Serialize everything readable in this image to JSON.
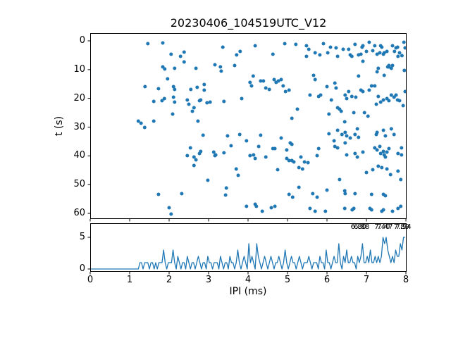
{
  "title": "20230406_104519UTC_V12",
  "colors": {
    "series": "#1f77b4",
    "axis": "#000000",
    "background": "#ffffff"
  },
  "chart_data": [
    {
      "type": "scatter",
      "ylabel": "t (s)",
      "xlim": [
        0,
        8
      ],
      "ylim": [
        0,
        62
      ],
      "y_inverted": true,
      "y_ticks": [
        0,
        10,
        20,
        30,
        40,
        50,
        60
      ],
      "grid": false,
      "marker_color": "#1f77b4",
      "points": [
        [
          1.46,
          0.98
        ],
        [
          1.84,
          0.73
        ],
        [
          2.05,
          4.65
        ],
        [
          2.29,
          5.39
        ],
        [
          2.38,
          3.92
        ],
        [
          3.36,
          2.2
        ],
        [
          3.71,
          4.9
        ],
        [
          3.8,
          3.67
        ],
        [
          1.84,
          9.06
        ],
        [
          1.89,
          9.8
        ],
        [
          2.14,
          9.55
        ],
        [
          2.38,
          7.35
        ],
        [
          2.68,
          9.55
        ],
        [
          3.16,
          8.33
        ],
        [
          3.3,
          9.06
        ],
        [
          3.32,
          10.53
        ],
        [
          3.66,
          8.57
        ],
        [
          1.96,
          13.22
        ],
        [
          1.39,
          15.92
        ],
        [
          1.73,
          16.65
        ],
        [
          2.11,
          15.92
        ],
        [
          2.14,
          16.9
        ],
        [
          2.55,
          16.9
        ],
        [
          2.71,
          16.16
        ],
        [
          2.89,
          15.18
        ],
        [
          2.89,
          17.14
        ],
        [
          1.61,
          21.06
        ],
        [
          1.82,
          20.82
        ],
        [
          1.88,
          20.08
        ],
        [
          2.11,
          19.59
        ],
        [
          2.14,
          21.31
        ],
        [
          2.46,
          20.57
        ],
        [
          2.5,
          22.04
        ],
        [
          2.63,
          23.27
        ],
        [
          2.77,
          20.82
        ],
        [
          2.8,
          20.57
        ],
        [
          2.96,
          21.55
        ],
        [
          3.04,
          21.31
        ],
        [
          3.39,
          21.06
        ],
        [
          3.84,
          20.08
        ],
        [
          2.09,
          25.47
        ],
        [
          2.59,
          24.49
        ],
        [
          1.22,
          27.92
        ],
        [
          1.29,
          28.65
        ],
        [
          1.61,
          27.92
        ],
        [
          2.73,
          27.92
        ],
        [
          4.18,
          1.71
        ],
        [
          4.63,
          4.65
        ],
        [
          4.93,
          0.98
        ],
        [
          5.21,
          1.22
        ],
        [
          5.48,
          1.71
        ],
        [
          5.54,
          2.94
        ],
        [
          5.48,
          5.39
        ],
        [
          5.7,
          4.16
        ],
        [
          5.82,
          4.9
        ],
        [
          5.91,
          0.98
        ],
        [
          6.02,
          4.16
        ],
        [
          6.09,
          2.2
        ],
        [
          6.23,
          2.45
        ],
        [
          6.27,
          5.39
        ],
        [
          6.41,
          2.94
        ],
        [
          6.55,
          2.94
        ],
        [
          6.59,
          4.9
        ],
        [
          6.63,
          5.39
        ],
        [
          6.71,
          1.22
        ],
        [
          6.8,
          4.9
        ],
        [
          6.86,
          4.65
        ],
        [
          6.89,
          2.2
        ],
        [
          6.91,
          1.71
        ],
        [
          6.91,
          7.1
        ],
        [
          7.0,
          3.67
        ],
        [
          7.07,
          0.49
        ],
        [
          7.16,
          3.43
        ],
        [
          7.21,
          1.71
        ],
        [
          7.27,
          4.65
        ],
        [
          7.34,
          4.16
        ],
        [
          7.36,
          1.71
        ],
        [
          7.39,
          2.2
        ],
        [
          7.43,
          4.65
        ],
        [
          7.45,
          4.16
        ],
        [
          7.52,
          3.67
        ],
        [
          7.54,
          9.06
        ],
        [
          7.57,
          8.57
        ],
        [
          7.66,
          1.71
        ],
        [
          7.71,
          3.67
        ],
        [
          7.75,
          2.45
        ],
        [
          7.79,
          2.2
        ],
        [
          7.8,
          5.39
        ],
        [
          7.84,
          4.16
        ],
        [
          7.27,
          10.78
        ],
        [
          7.3,
          9.55
        ],
        [
          7.45,
          12.0
        ],
        [
          7.57,
          9.06
        ],
        [
          7.63,
          9.55
        ],
        [
          7.66,
          8.57
        ],
        [
          4.13,
          12.24
        ],
        [
          4.05,
          14.45
        ],
        [
          4.09,
          15.67
        ],
        [
          4.32,
          13.96
        ],
        [
          4.39,
          13.96
        ],
        [
          4.45,
          16.41
        ],
        [
          4.54,
          16.9
        ],
        [
          4.66,
          13.47
        ],
        [
          4.71,
          14.45
        ],
        [
          4.77,
          13.96
        ],
        [
          4.84,
          13.47
        ],
        [
          4.89,
          15.67
        ],
        [
          4.95,
          17.63
        ],
        [
          5.04,
          17.14
        ],
        [
          5.11,
          26.94
        ],
        [
          5.25,
          23.76
        ],
        [
          5.57,
          18.86
        ],
        [
          5.66,
          12.0
        ],
        [
          5.7,
          13.47
        ],
        [
          5.79,
          19.35
        ],
        [
          5.84,
          18.86
        ],
        [
          6.0,
          15.92
        ],
        [
          6.05,
          25.47
        ],
        [
          6.11,
          20.57
        ],
        [
          6.2,
          14.69
        ],
        [
          6.23,
          16.41
        ],
        [
          6.27,
          23.27
        ],
        [
          6.32,
          23.76
        ],
        [
          6.36,
          24.49
        ],
        [
          6.45,
          28.16
        ],
        [
          6.46,
          18.86
        ],
        [
          6.5,
          20.08
        ],
        [
          6.55,
          17.63
        ],
        [
          6.63,
          19.35
        ],
        [
          6.68,
          24.98
        ],
        [
          6.73,
          19.59
        ],
        [
          6.8,
          12.24
        ],
        [
          6.86,
          17.14
        ],
        [
          6.91,
          17.63
        ],
        [
          6.95,
          24.98
        ],
        [
          7.04,
          26.2
        ],
        [
          7.07,
          17.14
        ],
        [
          7.13,
          15.67
        ],
        [
          7.21,
          15.67
        ],
        [
          7.25,
          22.04
        ],
        [
          7.3,
          19.35
        ],
        [
          7.36,
          21.31
        ],
        [
          7.43,
          20.57
        ],
        [
          7.52,
          20.08
        ],
        [
          7.57,
          20.82
        ],
        [
          7.63,
          18.86
        ],
        [
          7.7,
          19.59
        ],
        [
          7.75,
          18.86
        ],
        [
          7.79,
          20.57
        ],
        [
          7.84,
          20.82
        ],
        [
          7.95,
          0.49
        ],
        [
          7.96,
          10.29
        ],
        [
          7.98,
          17.63
        ],
        [
          7.93,
          22.53
        ],
        [
          7.98,
          2.45
        ],
        [
          7.9,
          5.14
        ],
        [
          1.38,
          30.12
        ],
        [
          2.86,
          32.82
        ],
        [
          3.48,
          33.06
        ],
        [
          3.79,
          32.57
        ],
        [
          2.54,
          37.22
        ],
        [
          2.46,
          39.92
        ],
        [
          2.63,
          40.41
        ],
        [
          2.77,
          39.18
        ],
        [
          2.8,
          38.45
        ],
        [
          3.13,
          38.69
        ],
        [
          3.16,
          39.92
        ],
        [
          3.18,
          39.67
        ],
        [
          3.39,
          38.94
        ],
        [
          3.57,
          36.49
        ],
        [
          3.96,
          34.78
        ],
        [
          2.68,
          41.39
        ],
        [
          2.63,
          43.35
        ],
        [
          3.7,
          44.57
        ],
        [
          3.75,
          46.78
        ],
        [
          2.98,
          48.49
        ],
        [
          1.73,
          53.39
        ],
        [
          2.32,
          53.14
        ],
        [
          3.45,
          51.18
        ],
        [
          3.43,
          53.63
        ],
        [
          2.0,
          58.04
        ],
        [
          2.05,
          60.24
        ],
        [
          3.96,
          57.55
        ],
        [
          4.32,
          32.82
        ],
        [
          4.84,
          33.8
        ],
        [
          5.07,
          35.51
        ],
        [
          5.11,
          36.0
        ],
        [
          4.27,
          36.73
        ],
        [
          4.63,
          37.47
        ],
        [
          4.68,
          37.47
        ],
        [
          4.98,
          37.96
        ],
        [
          6.05,
          32.33
        ],
        [
          6.27,
          31.1
        ],
        [
          6.38,
          32.57
        ],
        [
          6.46,
          31.84
        ],
        [
          6.5,
          33.06
        ],
        [
          6.59,
          33.8
        ],
        [
          6.71,
          32.57
        ],
        [
          6.77,
          30.61
        ],
        [
          6.8,
          33.55
        ],
        [
          7.25,
          32.57
        ],
        [
          7.27,
          31.84
        ],
        [
          7.43,
          31.1
        ],
        [
          7.48,
          33.06
        ],
        [
          7.63,
          30.61
        ],
        [
          7.7,
          32.57
        ],
        [
          4.05,
          39.92
        ],
        [
          4.14,
          39.67
        ],
        [
          4.18,
          40.9
        ],
        [
          4.45,
          40.41
        ],
        [
          4.98,
          40.9
        ],
        [
          5.04,
          41.63
        ],
        [
          5.11,
          41.63
        ],
        [
          5.16,
          42.12
        ],
        [
          5.34,
          40.41
        ],
        [
          5.43,
          42.12
        ],
        [
          5.52,
          42.37
        ],
        [
          5.79,
          37.47
        ],
        [
          5.75,
          39.92
        ],
        [
          6.18,
          34.78
        ],
        [
          6.2,
          36.73
        ],
        [
          6.27,
          37.22
        ],
        [
          6.46,
          35.51
        ],
        [
          6.5,
          39.67
        ],
        [
          6.71,
          39.18
        ],
        [
          6.77,
          40.41
        ],
        [
          6.91,
          38.69
        ],
        [
          7.21,
          37.22
        ],
        [
          7.27,
          37.96
        ],
        [
          7.34,
          36.73
        ],
        [
          7.36,
          39.18
        ],
        [
          7.43,
          38.45
        ],
        [
          7.45,
          39.67
        ],
        [
          7.48,
          40.41
        ],
        [
          7.52,
          38.69
        ],
        [
          7.57,
          37.47
        ],
        [
          7.8,
          39.18
        ],
        [
          7.89,
          39.67
        ],
        [
          7.89,
          37.22
        ],
        [
          4.75,
          44.82
        ],
        [
          5.29,
          44.08
        ],
        [
          5.38,
          44.57
        ],
        [
          7.0,
          45.8
        ],
        [
          7.16,
          44.82
        ],
        [
          7.3,
          43.59
        ],
        [
          7.39,
          44.08
        ],
        [
          7.52,
          44.57
        ],
        [
          7.61,
          46.53
        ],
        [
          7.8,
          45.31
        ],
        [
          7.87,
          48.24
        ],
        [
          5.29,
          50.94
        ],
        [
          5.64,
          53.14
        ],
        [
          5.75,
          54.37
        ],
        [
          6.0,
          51.92
        ],
        [
          6.32,
          48.24
        ],
        [
          6.45,
          52.16
        ],
        [
          6.46,
          53.14
        ],
        [
          6.71,
          53.14
        ],
        [
          7.13,
          53.39
        ],
        [
          7.43,
          53.39
        ],
        [
          7.48,
          53.88
        ],
        [
          5.04,
          53.39
        ],
        [
          5.13,
          54.37
        ],
        [
          4.18,
          56.82
        ],
        [
          4.21,
          57.55
        ],
        [
          4.36,
          59.27
        ],
        [
          4.59,
          58.04
        ],
        [
          4.68,
          57.55
        ],
        [
          5.57,
          58.29
        ],
        [
          5.7,
          59.27
        ],
        [
          5.96,
          59.27
        ],
        [
          6.45,
          58.29
        ],
        [
          6.64,
          58.78
        ],
        [
          6.68,
          58.29
        ],
        [
          7.09,
          58.29
        ],
        [
          7.13,
          58.78
        ],
        [
          7.39,
          59.27
        ],
        [
          7.43,
          58.78
        ],
        [
          7.66,
          59.27
        ],
        [
          7.8,
          58.29
        ],
        [
          7.87,
          57.55
        ]
      ]
    },
    {
      "type": "line",
      "xlabel": "IPI (ms)",
      "xlim": [
        0,
        8
      ],
      "ylim": [
        0,
        7.2
      ],
      "x_ticks": [
        0,
        1,
        2,
        3,
        4,
        5,
        6,
        7,
        8
      ],
      "y_ticks": [
        0,
        5
      ],
      "grid": false,
      "line_color": "#1f77b4",
      "bin_width": 0.04,
      "bin_start": 0.02,
      "counts": [
        0,
        0,
        0,
        0,
        0,
        0,
        0,
        0,
        0,
        0,
        0,
        0,
        0,
        0,
        0,
        0,
        0,
        0,
        0,
        0,
        0,
        0,
        0,
        0,
        0,
        0,
        0,
        0,
        0,
        0,
        0,
        1,
        1,
        0,
        1,
        1,
        1,
        0,
        1,
        1,
        0,
        1,
        0,
        1,
        1,
        1,
        3,
        1,
        0,
        1,
        1,
        1,
        3,
        1,
        0,
        2,
        1,
        0,
        1,
        1,
        0,
        2,
        1,
        0,
        1,
        1,
        0,
        1,
        2,
        1,
        0,
        1,
        1,
        0,
        2,
        1,
        1,
        0,
        1,
        1,
        1,
        0,
        2,
        1,
        0,
        1,
        1,
        0,
        2,
        1,
        1,
        0,
        1,
        3,
        1,
        0,
        1,
        2,
        1,
        0,
        4,
        1,
        2,
        1,
        0,
        4,
        2,
        1,
        0,
        1,
        2,
        1,
        0,
        1,
        2,
        1,
        0,
        1,
        1,
        2,
        1,
        0,
        1,
        3,
        1,
        0,
        1,
        2,
        1,
        1,
        0,
        1,
        2,
        1,
        0,
        1,
        1,
        1,
        2,
        1,
        0,
        1,
        1,
        1,
        0,
        2,
        1,
        1,
        0,
        3,
        1,
        1,
        0,
        1,
        2,
        1,
        1,
        4,
        1,
        0,
        2,
        1,
        3,
        1,
        1,
        2,
        1,
        1,
        0,
        2,
        1,
        2,
        4,
        1,
        1,
        2,
        1,
        3,
        1,
        1,
        2,
        1,
        2,
        1,
        2,
        5,
        4,
        5,
        3,
        2,
        1,
        2,
        1,
        3,
        2,
        2,
        4,
        3,
        5,
        5
      ],
      "annotations": [
        {
          "x": 6.8,
          "label": "6.80"
        },
        {
          "x": 6.88,
          "label": "6.88"
        },
        {
          "x": 7.4,
          "label": "7.40"
        },
        {
          "x": 7.47,
          "label": "7.47"
        },
        {
          "x": 7.89,
          "label": "7.89"
        },
        {
          "x": 7.94,
          "label": "7.94"
        }
      ]
    }
  ]
}
